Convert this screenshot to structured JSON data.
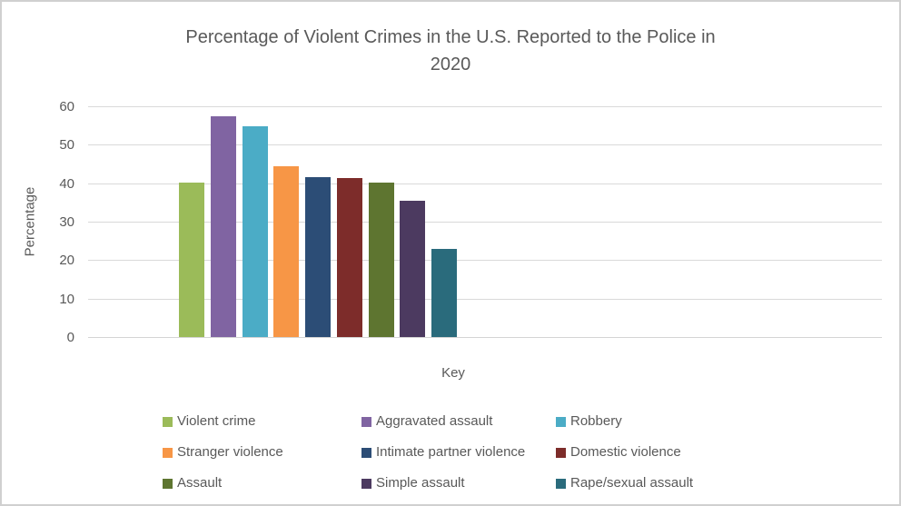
{
  "title": {
    "line1": "Percentage of Violent Crimes in the U.S. Reported to the Police in",
    "line2": "2020"
  },
  "chart_data": {
    "type": "bar",
    "title": "Percentage of Violent Crimes in the U.S. Reported to the Police in 2020",
    "xlabel": "Key",
    "ylabel": "Percentage",
    "ylim": [
      0,
      60
    ],
    "yticks": [
      0,
      10,
      20,
      30,
      40,
      50,
      60
    ],
    "grid": true,
    "legend_position": "bottom",
    "legend_columns": 3,
    "categories": [
      "Violent crime",
      "Aggravated assault",
      "Robbery",
      "Stranger violence",
      "Intimate partner violence",
      "Domestic violence",
      "Assault",
      "Simple assault",
      "Rape/sexual assault"
    ],
    "values": [
      40.2,
      57.5,
      54.9,
      44.3,
      41.6,
      41.4,
      40.1,
      35.4,
      23
    ],
    "colors": [
      "#9BBB59",
      "#8064A2",
      "#4BACC6",
      "#F79646",
      "#2C4D76",
      "#7D2C2A",
      "#5E7530",
      "#4C3A60",
      "#2A6B7C"
    ]
  },
  "style": {
    "text_color": "#595959",
    "gridline_color": "#D9D9D9",
    "border_color": "#D0D0D0",
    "background": "#FFFFFF"
  }
}
